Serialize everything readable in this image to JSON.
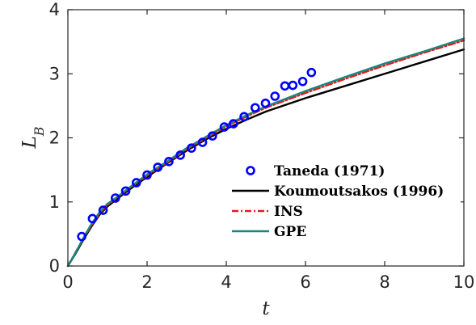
{
  "chart_data": {
    "type": "line",
    "title": "",
    "xlabel": "t",
    "ylabel": "L",
    "ylabel_subscript": "B",
    "xlim": [
      0,
      10
    ],
    "ylim": [
      0,
      4
    ],
    "xticks": [
      "0",
      "2",
      "4",
      "6",
      "8",
      "10"
    ],
    "yticks": [
      "0",
      "1",
      "2",
      "3",
      "4"
    ],
    "grid": false,
    "legend_position": "lower-right",
    "series": [
      {
        "name": "Taneda (1971)",
        "kind": "scatter",
        "marker": "open-circle",
        "color": "#0000ff",
        "x": [
          0.35,
          0.62,
          0.89,
          1.2,
          1.46,
          1.73,
          2.0,
          2.27,
          2.55,
          2.84,
          3.12,
          3.4,
          3.65,
          3.95,
          4.18,
          4.45,
          4.73,
          4.99,
          5.23,
          5.48,
          5.68,
          5.93,
          6.15
        ],
        "y": [
          0.46,
          0.74,
          0.87,
          1.06,
          1.17,
          1.3,
          1.42,
          1.54,
          1.63,
          1.73,
          1.84,
          1.93,
          2.03,
          2.17,
          2.22,
          2.33,
          2.47,
          2.54,
          2.65,
          2.81,
          2.82,
          2.88,
          3.02
        ]
      },
      {
        "name": "Koumoutsakos (1996)",
        "kind": "line",
        "color": "#000000",
        "dash": "solid",
        "x": [
          0,
          0.2,
          0.4,
          0.6,
          0.8,
          1.0,
          1.25,
          1.5,
          2.0,
          2.5,
          3.0,
          3.5,
          4.0,
          4.5,
          5.0,
          6.0,
          7.0,
          8.0,
          9.0,
          10.0
        ],
        "y": [
          0,
          0.2,
          0.42,
          0.62,
          0.8,
          0.93,
          1.05,
          1.17,
          1.39,
          1.6,
          1.8,
          1.98,
          2.14,
          2.28,
          2.41,
          2.62,
          2.81,
          3.0,
          3.19,
          3.38
        ]
      },
      {
        "name": "INS",
        "kind": "line",
        "color": "#e41a1c",
        "dash": "dashdot",
        "x": [
          0,
          0.2,
          0.4,
          0.6,
          0.8,
          1.0,
          1.25,
          1.5,
          2.0,
          2.5,
          3.0,
          3.5,
          4.0,
          4.5,
          5.0,
          6.0,
          7.0,
          8.0,
          9.0,
          10.0
        ],
        "y": [
          0,
          0.22,
          0.44,
          0.64,
          0.82,
          0.95,
          1.07,
          1.19,
          1.41,
          1.61,
          1.82,
          2.0,
          2.18,
          2.33,
          2.47,
          2.7,
          2.92,
          3.13,
          3.33,
          3.52
        ]
      },
      {
        "name": "GPE",
        "kind": "line",
        "color": "#17877f",
        "dash": "solid",
        "x": [
          0,
          0.2,
          0.4,
          0.6,
          0.8,
          1.0,
          1.25,
          1.5,
          2.0,
          2.5,
          3.0,
          3.5,
          4.0,
          4.5,
          5.0,
          6.0,
          7.0,
          8.0,
          9.0,
          10.0
        ],
        "y": [
          0,
          0.21,
          0.45,
          0.66,
          0.84,
          0.97,
          1.08,
          1.2,
          1.43,
          1.63,
          1.84,
          2.02,
          2.2,
          2.35,
          2.49,
          2.73,
          2.95,
          3.16,
          3.35,
          3.55
        ]
      }
    ]
  }
}
